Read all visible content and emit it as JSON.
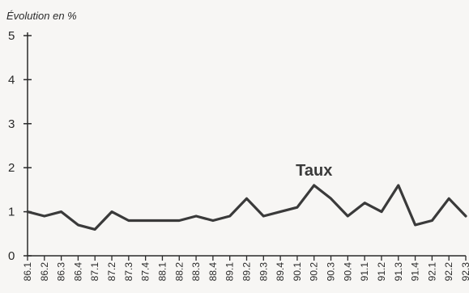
{
  "chart_data": {
    "type": "line",
    "ylabel": "Évolution en %",
    "ylim": [
      0,
      5
    ],
    "yticks": [
      "0",
      "1",
      "2",
      "3",
      "4",
      "5"
    ],
    "grid": false,
    "legend": "none",
    "series_color": "#3a3a3a",
    "categories": [
      "86.1",
      "86.2",
      "86.3",
      "86.4",
      "87.1",
      "87.2",
      "87.3",
      "87.4",
      "88.1",
      "88.2",
      "88.3",
      "88.4",
      "89.1",
      "89.2",
      "89.3",
      "89.4",
      "90.1",
      "90.2",
      "90.3",
      "90.4",
      "91.1",
      "91.2",
      "91.3",
      "91.4",
      "92.1",
      "92.2",
      "92.3"
    ],
    "series": [
      {
        "name": "Taux",
        "values": [
          1.0,
          0.9,
          1.0,
          0.7,
          0.6,
          1.0,
          0.8,
          0.8,
          0.8,
          0.8,
          0.9,
          0.8,
          0.9,
          1.3,
          0.9,
          1.0,
          1.1,
          1.6,
          1.3,
          0.9,
          1.2,
          1.0,
          1.6,
          0.7,
          0.8,
          1.3,
          0.9
        ]
      }
    ]
  }
}
